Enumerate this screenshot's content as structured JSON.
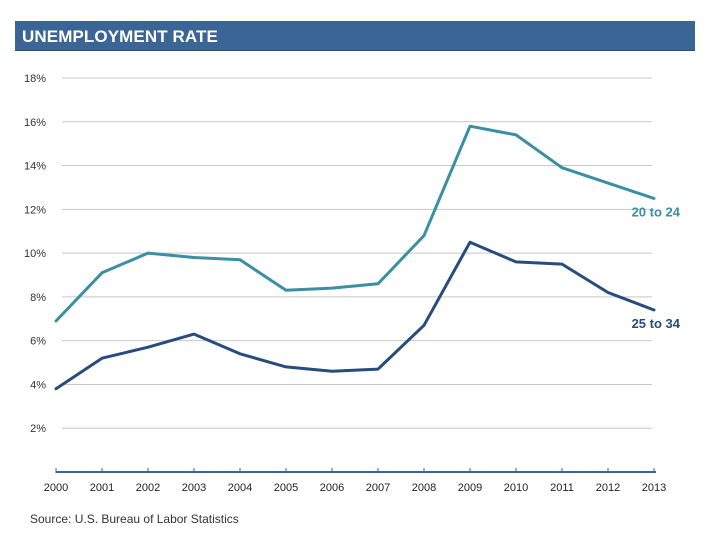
{
  "header": {
    "title": "UNEMPLOYMENT RATE"
  },
  "source": "Source: U.S. Bureau of Labor Statistics",
  "colors": {
    "header_bg": "#3a6595",
    "series_20_24": "#3a8fa2",
    "series_25_34": "#274c7d",
    "grid": "#c8c8c8"
  },
  "chart_data": {
    "type": "line",
    "title": "UNEMPLOYMENT RATE",
    "xlabel": "",
    "ylabel": "",
    "x": [
      "2000",
      "2001",
      "2002",
      "2003",
      "2004",
      "2005",
      "2006",
      "2007",
      "2008",
      "2009",
      "2010",
      "2011",
      "2012",
      "2013"
    ],
    "ylim": [
      0,
      18
    ],
    "yticks": [
      "2%",
      "4%",
      "6%",
      "8%",
      "10%",
      "12%",
      "14%",
      "16%",
      "18%"
    ],
    "grid": true,
    "series": [
      {
        "name": "20 to 24",
        "color": "#3a8fa2",
        "values": [
          6.9,
          9.1,
          10.0,
          9.8,
          9.7,
          8.3,
          8.4,
          8.6,
          10.8,
          15.8,
          15.4,
          13.9,
          13.2,
          12.5
        ]
      },
      {
        "name": "25 to 34",
        "color": "#274c7d",
        "values": [
          3.8,
          5.2,
          5.7,
          6.3,
          5.4,
          4.8,
          4.6,
          4.7,
          6.7,
          10.5,
          9.6,
          9.5,
          8.2,
          7.4
        ]
      }
    ]
  }
}
